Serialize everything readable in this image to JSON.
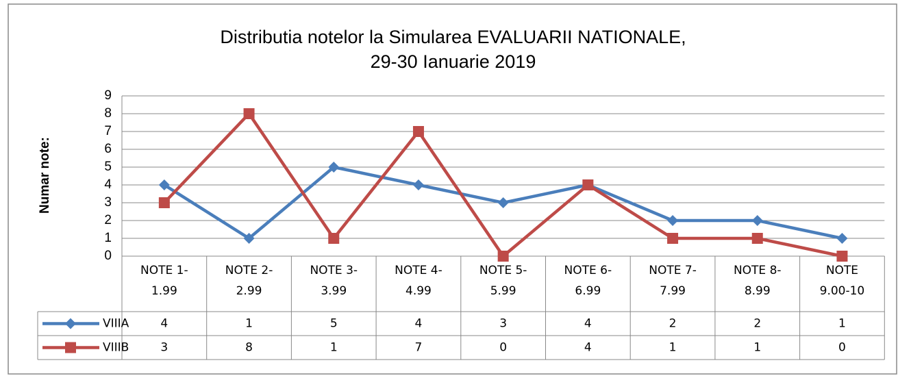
{
  "chart_data": {
    "type": "line",
    "title": "Distributia notelor la Simularea EVALUARII NATIONALE,\n29-30 Ianuarie 2019",
    "y_label": "Numar note:",
    "categories": [
      "NOTE 1-1.99",
      "NOTE 2-2.99",
      "NOTE 3-3.99",
      "NOTE 4-4.99",
      "NOTE 5-5.99",
      "NOTE 6-6.99",
      "NOTE 7-7.99",
      "NOTE 8-8.99",
      "NOTE 9.00-10"
    ],
    "series": [
      {
        "name": "VIIIA",
        "color": "#4a7ebb",
        "marker": "diamond",
        "values": [
          4,
          1,
          5,
          4,
          3,
          4,
          2,
          2,
          1
        ]
      },
      {
        "name": "VIIIB",
        "color": "#be4b48",
        "marker": "square",
        "values": [
          3,
          8,
          1,
          7,
          0,
          4,
          1,
          1,
          0
        ]
      }
    ],
    "ylim": [
      0,
      9
    ],
    "yticks": [
      0,
      1,
      2,
      3,
      4,
      5,
      6,
      7,
      8,
      9
    ],
    "grid": true,
    "data_table": true
  }
}
